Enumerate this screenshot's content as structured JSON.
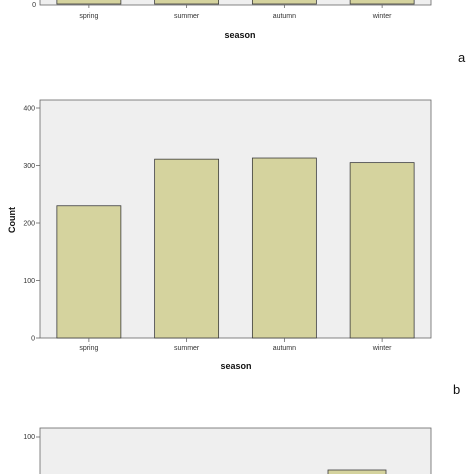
{
  "chart_data": [
    {
      "type": "bar",
      "panel": "a",
      "categories": [
        "spring",
        "summer",
        "autumn",
        "winter"
      ],
      "values": [
        null,
        null,
        null,
        null
      ],
      "xlabel": "season",
      "ylabel": "",
      "partial": true
    },
    {
      "type": "bar",
      "panel": "b",
      "categories": [
        "spring",
        "summer",
        "autumn",
        "winter"
      ],
      "values": [
        230,
        311,
        313,
        305
      ],
      "xlabel": "season",
      "ylabel": "Count",
      "ylim": [
        0,
        400
      ],
      "yticks": [
        0,
        100,
        200,
        300,
        400
      ],
      "grid": false,
      "colors": {
        "bar": "#d5d39e",
        "bar_edge": "#3c3c3c",
        "plot_bg": "#efefef"
      }
    },
    {
      "type": "bar",
      "panel": "c",
      "categories": [],
      "values": [],
      "yticks": [
        100
      ],
      "partial": true
    }
  ],
  "panel_letters": {
    "a": "a",
    "b": "b"
  }
}
